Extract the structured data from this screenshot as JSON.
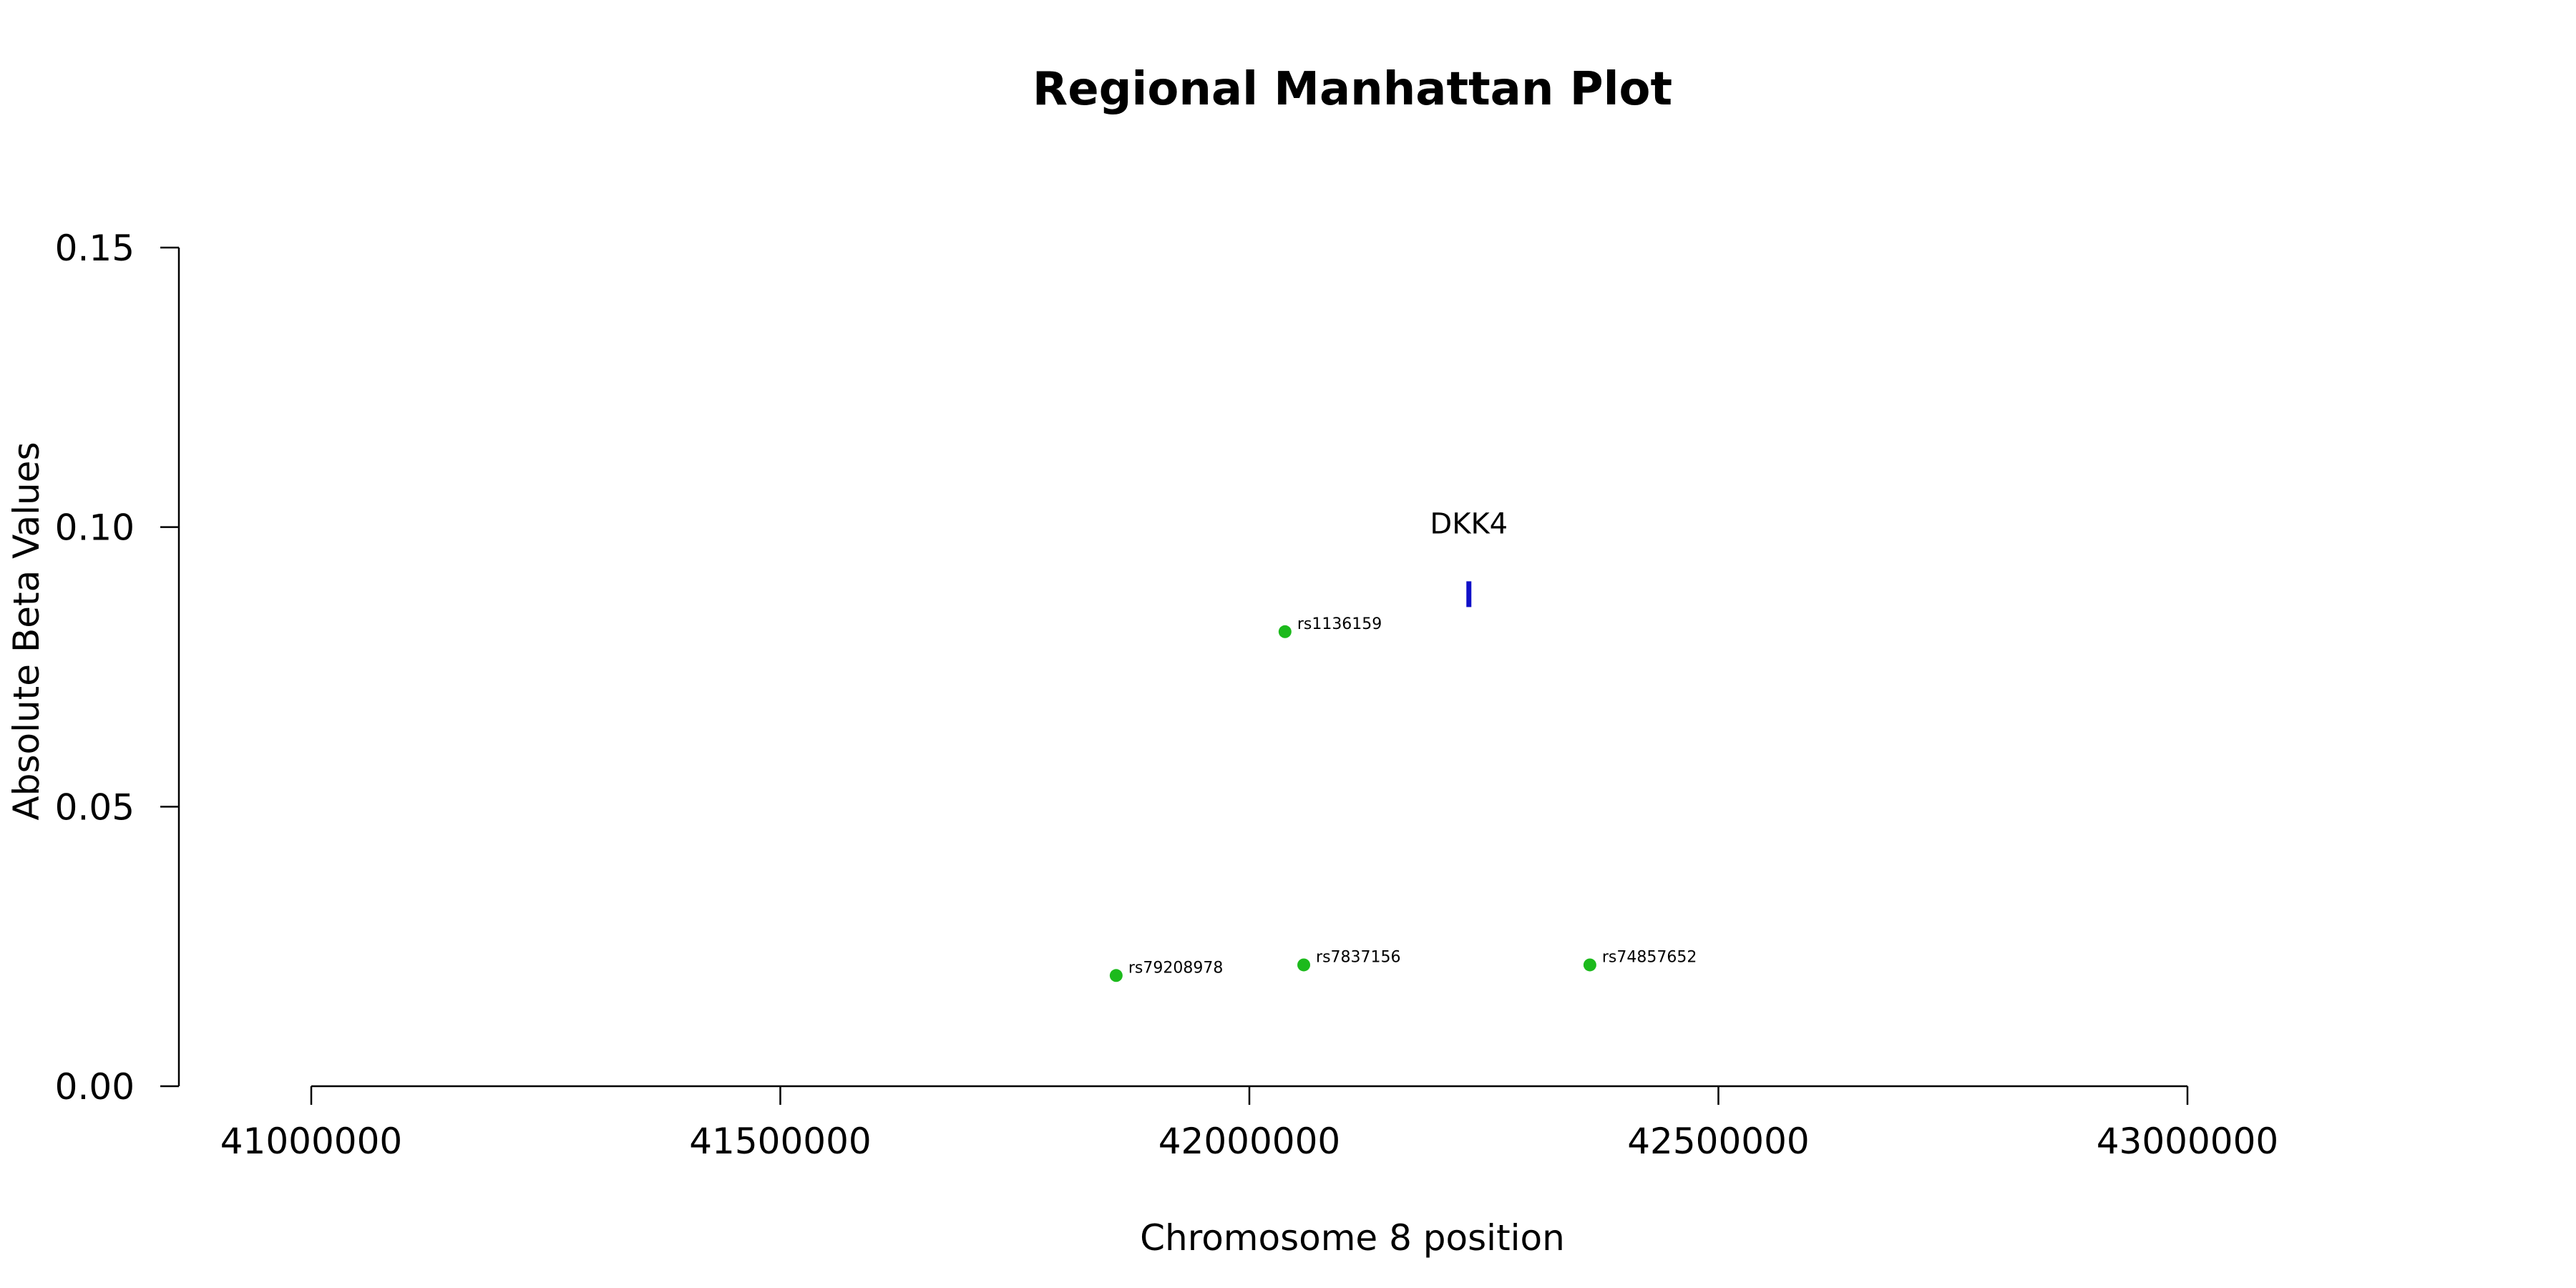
{
  "chart_data": {
    "type": "scatter",
    "title": "Regional Manhattan Plot",
    "xlabel": "Chromosome 8 position",
    "ylabel": "Absolute Beta Values",
    "xlim": [
      41000000,
      43000000
    ],
    "ylim": [
      0,
      0.15
    ],
    "x_ticks": [
      41000000,
      41500000,
      42000000,
      42500000,
      43000000
    ],
    "x_tick_labels": [
      "41000000",
      "41500000",
      "42000000",
      "42500000",
      "43000000"
    ],
    "y_ticks": [
      0,
      0.05,
      0.1,
      0.15
    ],
    "y_tick_labels": [
      "0.00",
      "0.05",
      "0.10",
      "0.15"
    ],
    "point_color": "#1cba1c",
    "points": [
      {
        "label": "rs79208978",
        "x": 41858000,
        "y": 0.0198
      },
      {
        "label": "rs1136159",
        "x": 42038000,
        "y": 0.0813
      },
      {
        "label": "rs7837156",
        "x": 42058000,
        "y": 0.0217
      },
      {
        "label": "rs74857652",
        "x": 42363000,
        "y": 0.0217
      }
    ],
    "gene": {
      "label": "DKK4",
      "start": 42232000,
      "end": 42236000,
      "y": 0.088,
      "color": "#1010c8"
    },
    "grid": false,
    "legend": "none"
  }
}
